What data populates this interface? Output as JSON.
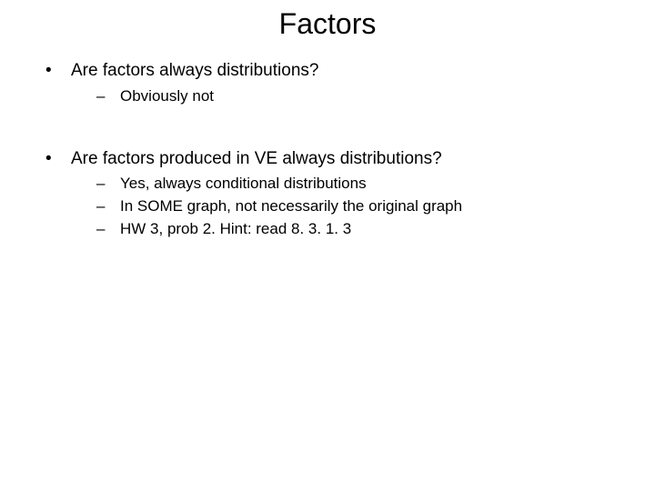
{
  "title": "Factors",
  "bullets": [
    {
      "text": "Are factors always distributions?",
      "subitems": [
        "Obviously not"
      ]
    },
    {
      "text": "Are factors produced in VE always distributions?",
      "subitems": [
        "Yes, always conditional distributions",
        "In SOME graph, not necessarily the original graph",
        "HW 3, prob 2. Hint: read 8. 3. 1. 3"
      ]
    }
  ],
  "colors": {
    "background": "#ffffff",
    "text": "#000000"
  },
  "typography": {
    "title_fontsize": 32,
    "bullet_fontsize": 19,
    "sub_fontsize": 17,
    "font_family": "Arial"
  }
}
